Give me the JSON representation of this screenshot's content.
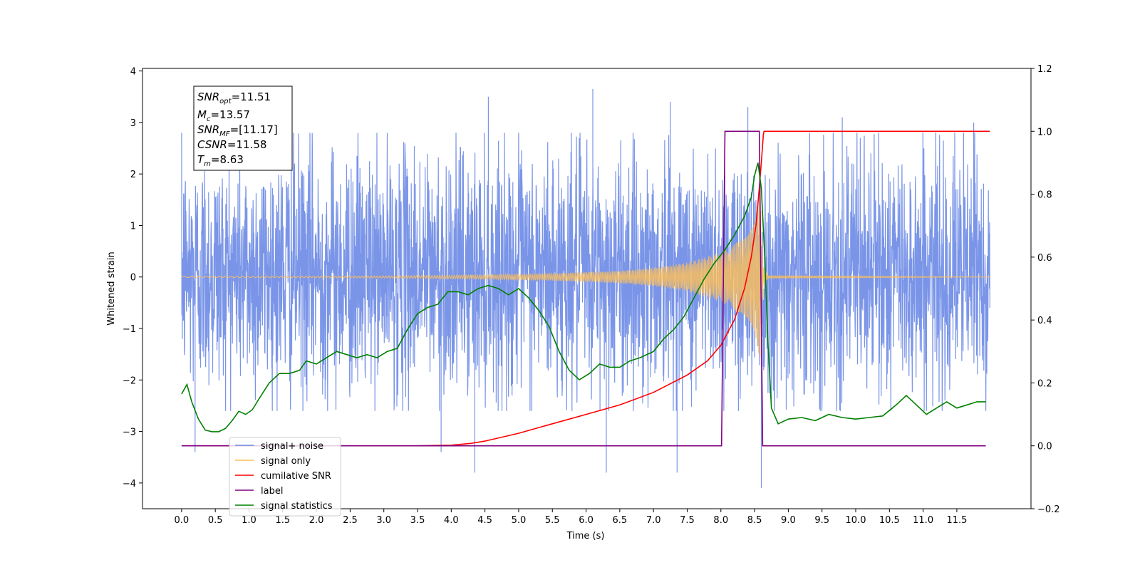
{
  "chart_data": {
    "type": "line",
    "xlabel": "Time (s)",
    "ylabel": "Whitened strain",
    "xlim": [
      -0.58,
      12.6
    ],
    "ylim_left": [
      -4.5,
      4.05
    ],
    "ylim_right": [
      -0.2,
      1.2
    ],
    "x_ticks": [
      "0.0",
      "0.5",
      "1.0",
      "1.5",
      "2.0",
      "2.5",
      "3.0",
      "3.5",
      "4.0",
      "4.5",
      "5.0",
      "5.5",
      "6.0",
      "6.5",
      "7.0",
      "7.5",
      "8.0",
      "8.5",
      "9.0",
      "9.5",
      "10.0",
      "10.5",
      "11.0",
      "11.5"
    ],
    "y_ticks_left": [
      "4",
      "3",
      "2",
      "1",
      "0",
      "−1",
      "−2",
      "−3",
      "−4"
    ],
    "y_ticks_right": [
      "1.2",
      "1.0",
      "0.8",
      "0.6",
      "0.4",
      "0.2",
      "0.0",
      "−0.2"
    ],
    "grid": false,
    "legend_position": "lower-left",
    "legend": [
      {
        "label": "signal+ noise",
        "color": "#6b8ae6"
      },
      {
        "label": "signal only",
        "color": "#ffbf57"
      },
      {
        "label": "cumilative SNR",
        "color": "#ff0000"
      },
      {
        "label": "label",
        "color": "#800080"
      },
      {
        "label": "signal statistics",
        "color": "#008000"
      }
    ],
    "annotation": {
      "lines": [
        {
          "base": "SNR",
          "sub": "opt",
          "value": "=11.51"
        },
        {
          "base": "M",
          "sub": "c",
          "value": "=13.57"
        },
        {
          "base": "SNR",
          "sub": "MF",
          "value": "=[11.17]"
        },
        {
          "base": "CSNR",
          "sub": "",
          "value": "=11.58"
        },
        {
          "base": "T",
          "sub": "m",
          "value": "=8.63"
        }
      ]
    },
    "series": [
      {
        "name": "signal+ noise",
        "axis": "left",
        "color": "#6b8ae6",
        "x_range": [
          0.0,
          11.99
        ],
        "typical_range": [
          -2.0,
          2.2
        ],
        "peaks_high": [
          [
            4.55,
            3.5
          ],
          [
            6.1,
            3.65
          ],
          [
            7.25,
            3.4
          ],
          [
            8.4,
            3.3
          ],
          [
            9.8,
            3.1
          ],
          [
            11.75,
            3.0
          ]
        ],
        "peaks_low": [
          [
            4.35,
            -3.8
          ],
          [
            6.3,
            -3.8
          ],
          [
            7.35,
            -3.8
          ],
          [
            8.6,
            -4.1
          ],
          [
            0.2,
            -3.4
          ],
          [
            3.85,
            -3.4
          ]
        ]
      },
      {
        "name": "signal only",
        "axis": "left",
        "color": "#ffbf57",
        "envelope": [
          [
            0.0,
            0.01
          ],
          [
            3.0,
            0.02
          ],
          [
            4.5,
            0.04
          ],
          [
            5.5,
            0.07
          ],
          [
            6.5,
            0.12
          ],
          [
            7.0,
            0.18
          ],
          [
            7.5,
            0.28
          ],
          [
            8.0,
            0.48
          ],
          [
            8.3,
            0.72
          ],
          [
            8.5,
            1.1
          ],
          [
            8.58,
            1.6
          ],
          [
            8.63,
            0.2
          ],
          [
            8.7,
            0.02
          ],
          [
            12.0,
            0.0
          ]
        ]
      },
      {
        "name": "cumilative SNR",
        "axis": "right",
        "color": "#ff0000",
        "points": [
          [
            0.0,
            0.0
          ],
          [
            3.5,
            0.0
          ],
          [
            4.0,
            0.002
          ],
          [
            4.3,
            0.008
          ],
          [
            4.5,
            0.015
          ],
          [
            5.0,
            0.04
          ],
          [
            5.5,
            0.07
          ],
          [
            6.0,
            0.1
          ],
          [
            6.5,
            0.13
          ],
          [
            7.0,
            0.17
          ],
          [
            7.5,
            0.225
          ],
          [
            7.8,
            0.27
          ],
          [
            8.0,
            0.32
          ],
          [
            8.2,
            0.4
          ],
          [
            8.35,
            0.5
          ],
          [
            8.45,
            0.6
          ],
          [
            8.52,
            0.7
          ],
          [
            8.57,
            0.82
          ],
          [
            8.6,
            0.9
          ],
          [
            8.63,
            0.99
          ],
          [
            8.64,
            1.0
          ],
          [
            11.99,
            1.0
          ]
        ]
      },
      {
        "name": "label",
        "axis": "right",
        "color": "#800080",
        "points": [
          [
            0.0,
            0.0
          ],
          [
            8.01,
            0.0
          ],
          [
            8.06,
            1.0
          ],
          [
            8.57,
            1.0
          ],
          [
            8.62,
            0.0
          ],
          [
            11.93,
            0.0
          ]
        ]
      },
      {
        "name": "signal statistics",
        "axis": "right",
        "color": "#008000",
        "points": [
          [
            0.0,
            0.165
          ],
          [
            0.08,
            0.195
          ],
          [
            0.15,
            0.14
          ],
          [
            0.25,
            0.085
          ],
          [
            0.35,
            0.05
          ],
          [
            0.45,
            0.045
          ],
          [
            0.55,
            0.045
          ],
          [
            0.65,
            0.055
          ],
          [
            0.75,
            0.08
          ],
          [
            0.85,
            0.11
          ],
          [
            0.95,
            0.1
          ],
          [
            1.05,
            0.115
          ],
          [
            1.15,
            0.15
          ],
          [
            1.3,
            0.2
          ],
          [
            1.45,
            0.23
          ],
          [
            1.6,
            0.23
          ],
          [
            1.75,
            0.24
          ],
          [
            1.85,
            0.27
          ],
          [
            2.0,
            0.26
          ],
          [
            2.15,
            0.28
          ],
          [
            2.3,
            0.3
          ],
          [
            2.45,
            0.29
          ],
          [
            2.6,
            0.28
          ],
          [
            2.75,
            0.29
          ],
          [
            2.9,
            0.28
          ],
          [
            3.05,
            0.3
          ],
          [
            3.2,
            0.31
          ],
          [
            3.35,
            0.37
          ],
          [
            3.5,
            0.42
          ],
          [
            3.65,
            0.44
          ],
          [
            3.8,
            0.45
          ],
          [
            3.95,
            0.49
          ],
          [
            4.1,
            0.49
          ],
          [
            4.25,
            0.48
          ],
          [
            4.4,
            0.5
          ],
          [
            4.55,
            0.51
          ],
          [
            4.7,
            0.5
          ],
          [
            4.85,
            0.48
          ],
          [
            5.0,
            0.5
          ],
          [
            5.15,
            0.47
          ],
          [
            5.3,
            0.43
          ],
          [
            5.45,
            0.38
          ],
          [
            5.6,
            0.3
          ],
          [
            5.75,
            0.24
          ],
          [
            5.9,
            0.21
          ],
          [
            6.05,
            0.23
          ],
          [
            6.2,
            0.26
          ],
          [
            6.35,
            0.25
          ],
          [
            6.5,
            0.25
          ],
          [
            6.65,
            0.27
          ],
          [
            6.8,
            0.28
          ],
          [
            7.0,
            0.3
          ],
          [
            7.15,
            0.34
          ],
          [
            7.3,
            0.37
          ],
          [
            7.45,
            0.41
          ],
          [
            7.6,
            0.47
          ],
          [
            7.75,
            0.53
          ],
          [
            7.9,
            0.58
          ],
          [
            8.05,
            0.62
          ],
          [
            8.2,
            0.67
          ],
          [
            8.35,
            0.73
          ],
          [
            8.45,
            0.79
          ],
          [
            8.5,
            0.86
          ],
          [
            8.55,
            0.9
          ],
          [
            8.6,
            0.82
          ],
          [
            8.65,
            0.6
          ],
          [
            8.7,
            0.32
          ],
          [
            8.75,
            0.12
          ],
          [
            8.85,
            0.07
          ],
          [
            9.0,
            0.085
          ],
          [
            9.2,
            0.09
          ],
          [
            9.4,
            0.08
          ],
          [
            9.6,
            0.1
          ],
          [
            9.8,
            0.09
          ],
          [
            10.0,
            0.085
          ],
          [
            10.2,
            0.09
          ],
          [
            10.4,
            0.095
          ],
          [
            10.6,
            0.13
          ],
          [
            10.75,
            0.16
          ],
          [
            10.9,
            0.13
          ],
          [
            11.05,
            0.1
          ],
          [
            11.2,
            0.12
          ],
          [
            11.35,
            0.14
          ],
          [
            11.5,
            0.12
          ],
          [
            11.65,
            0.13
          ],
          [
            11.8,
            0.14
          ],
          [
            11.93,
            0.14
          ]
        ]
      }
    ]
  }
}
